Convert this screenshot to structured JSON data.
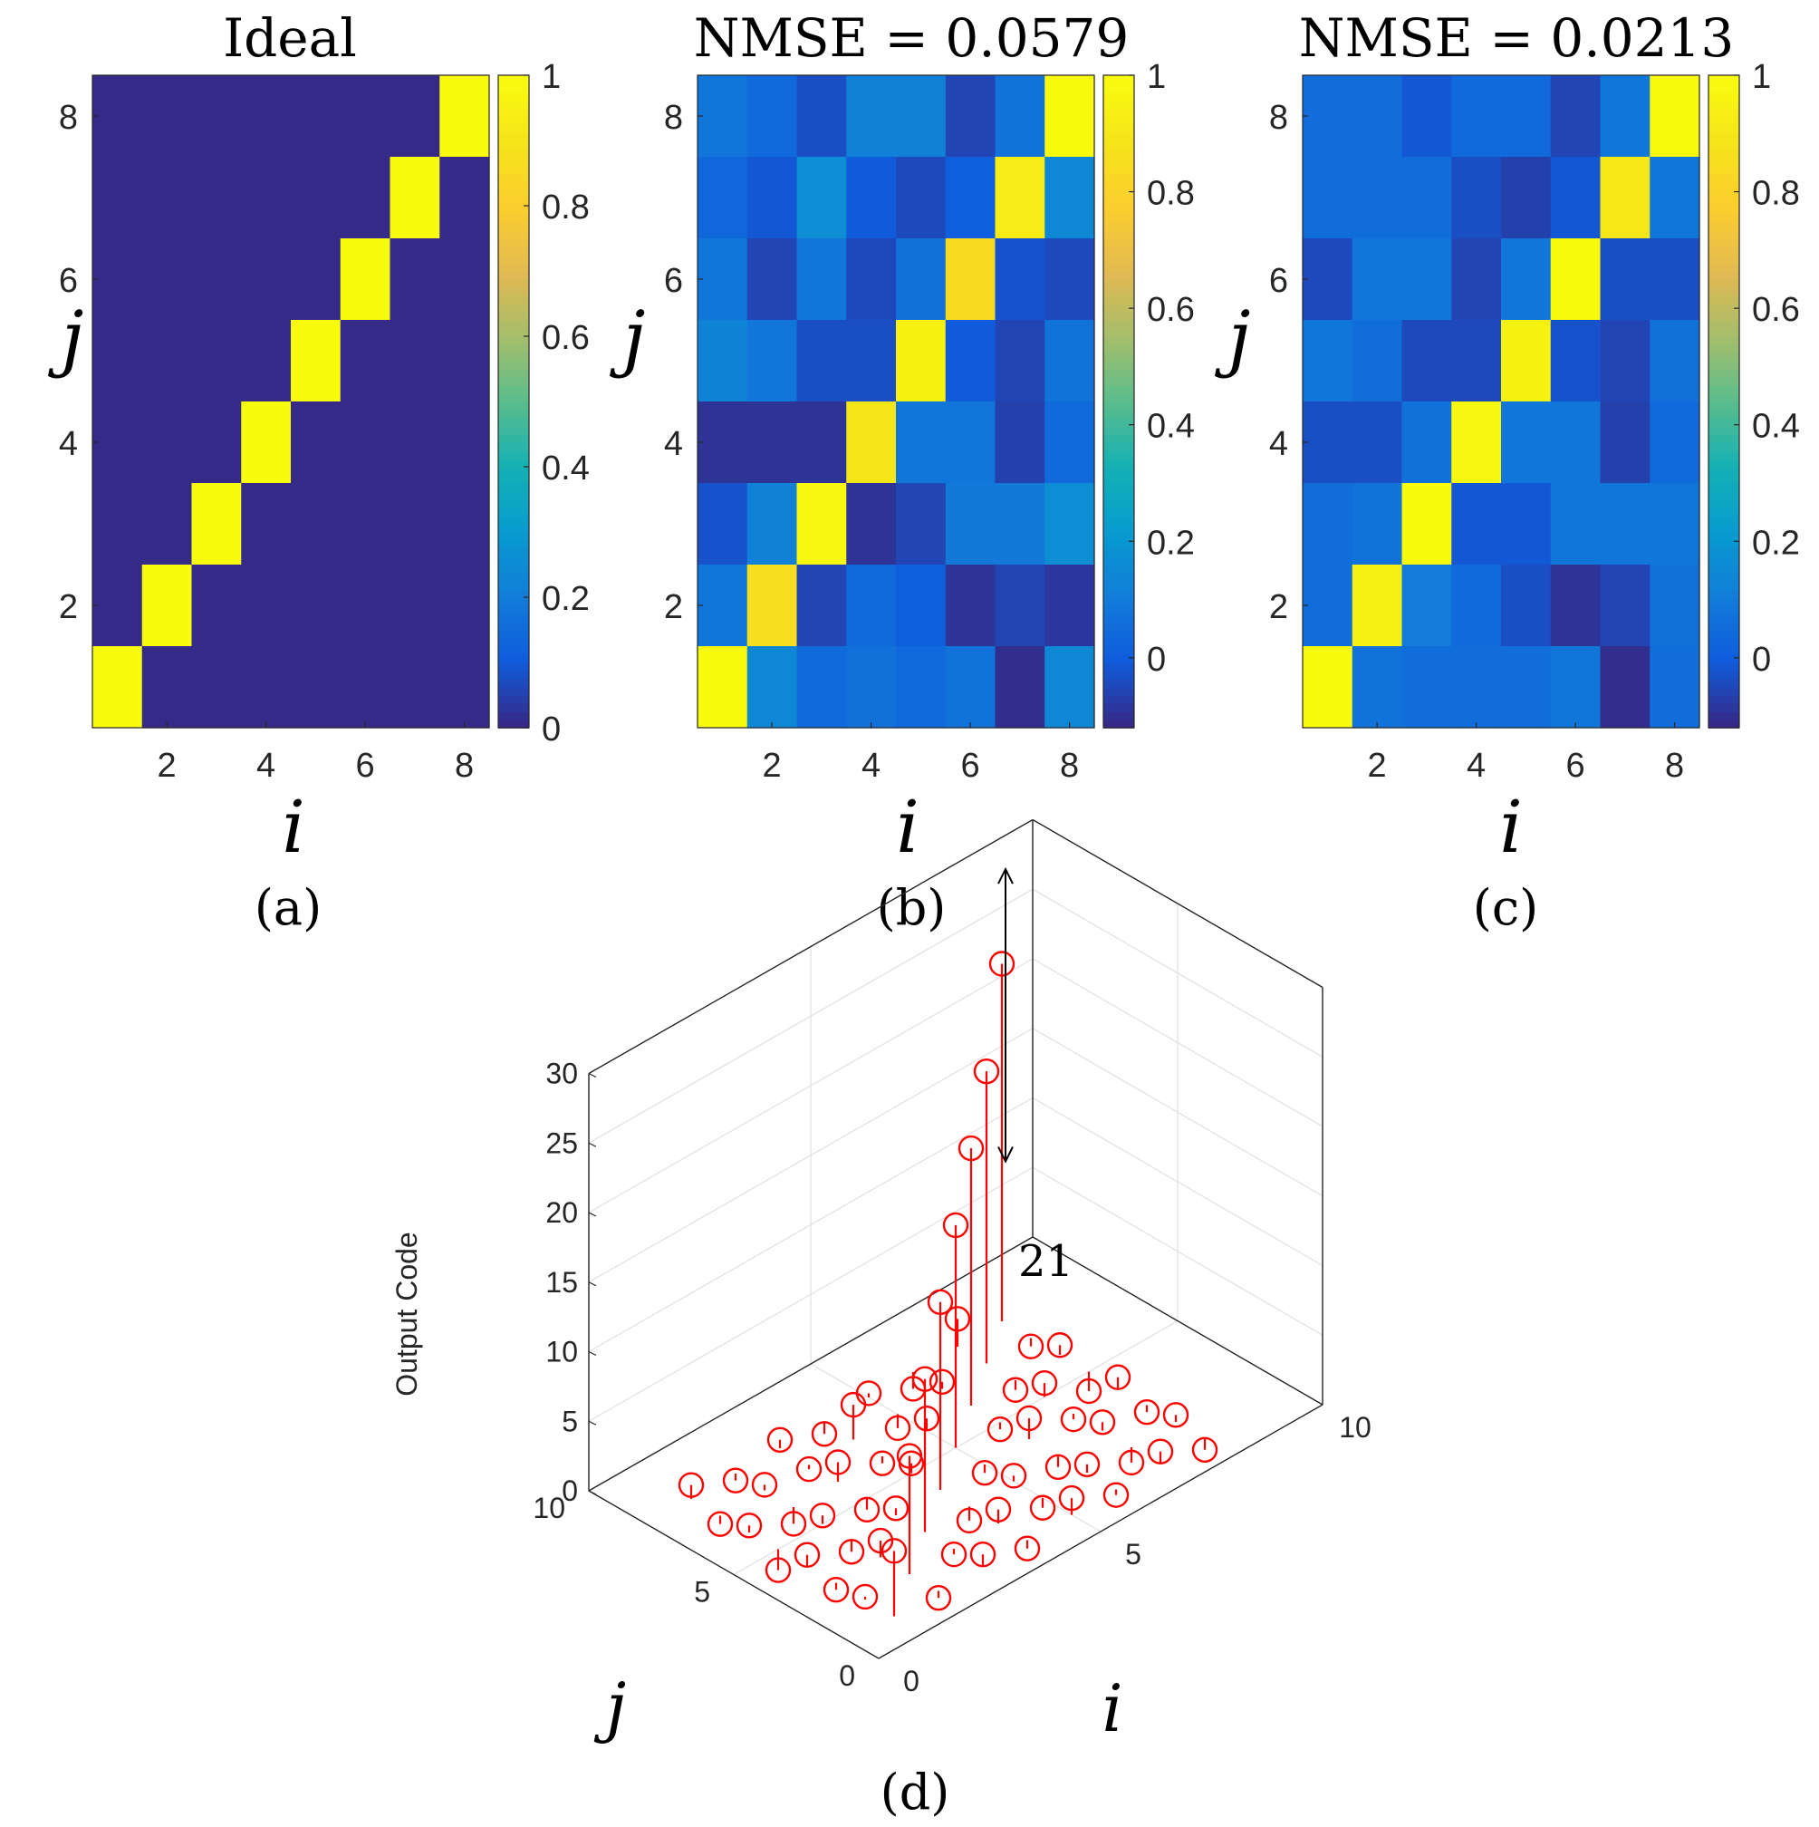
{
  "heatmaps": [
    {
      "panel": "(a)",
      "title": "Ideal",
      "xlabel": "i",
      "ylabel": "j",
      "xticks": [
        "2",
        "4",
        "6",
        "8"
      ],
      "yticks": [
        "2",
        "4",
        "6",
        "8"
      ],
      "cbar_ticks": [
        "0",
        "0.2",
        "0.4",
        "0.6",
        "0.8",
        "1"
      ]
    },
    {
      "panel": "(b)",
      "title": "NMSE = 0.0579",
      "xlabel": "i",
      "ylabel": "j",
      "xticks": [
        "2",
        "4",
        "6",
        "8"
      ],
      "yticks": [
        "2",
        "4",
        "6",
        "8"
      ],
      "cbar_ticks": [
        "0",
        "0.2",
        "0.4",
        "0.6",
        "0.8",
        "1"
      ]
    },
    {
      "panel": "(c)",
      "title": "NMSE = 0.0213",
      "xlabel": "i",
      "ylabel": "j",
      "xticks": [
        "2",
        "4",
        "6",
        "8"
      ],
      "yticks": [
        "2",
        "4",
        "6",
        "8"
      ],
      "cbar_ticks": [
        "0",
        "0.2",
        "0.4",
        "0.6",
        "0.8",
        "1"
      ]
    }
  ],
  "stem3d": {
    "panel": "(d)",
    "zlabel": "Output Code",
    "xlabel": "i",
    "ylabel": "j",
    "zticks": [
      "0",
      "5",
      "10",
      "15",
      "20",
      "25",
      "30"
    ],
    "iticks": [
      "0",
      "5",
      "10"
    ],
    "jticks": [
      "0",
      "5",
      "10"
    ],
    "annotation": "21"
  },
  "chart_data": [
    {
      "type": "heatmap",
      "title": "Ideal",
      "xlabel": "i",
      "ylabel": "j",
      "x": [
        1,
        2,
        3,
        4,
        5,
        6,
        7,
        8
      ],
      "y": [
        1,
        2,
        3,
        4,
        5,
        6,
        7,
        8
      ],
      "clim": [
        0,
        1
      ],
      "rows_j8_to_j1": [
        [
          0,
          0,
          0,
          0,
          0,
          0,
          0,
          1
        ],
        [
          0,
          0,
          0,
          0,
          0,
          0,
          1,
          0
        ],
        [
          0,
          0,
          0,
          0,
          0,
          1,
          0,
          0
        ],
        [
          0,
          0,
          0,
          0,
          1,
          0,
          0,
          0
        ],
        [
          0,
          0,
          0,
          1,
          0,
          0,
          0,
          0
        ],
        [
          0,
          0,
          1,
          0,
          0,
          0,
          0,
          0
        ],
        [
          0,
          1,
          0,
          0,
          0,
          0,
          0,
          0
        ],
        [
          1,
          0,
          0,
          0,
          0,
          0,
          0,
          0
        ]
      ]
    },
    {
      "type": "heatmap",
      "title": "NMSE = 0.0579",
      "xlabel": "i",
      "ylabel": "j",
      "x": [
        1,
        2,
        3,
        4,
        5,
        6,
        7,
        8
      ],
      "y": [
        1,
        2,
        3,
        4,
        5,
        6,
        7,
        8
      ],
      "clim": [
        -0.12,
        1
      ],
      "rows_j8_to_j1": [
        [
          0.08,
          0.04,
          -0.04,
          0.12,
          0.12,
          -0.06,
          0.07,
          1.0
        ],
        [
          0.03,
          -0.02,
          0.16,
          -0.01,
          -0.05,
          0.0,
          0.93,
          0.14
        ],
        [
          0.08,
          -0.06,
          0.08,
          -0.05,
          0.06,
          0.84,
          -0.03,
          -0.05
        ],
        [
          0.13,
          0.08,
          -0.04,
          -0.04,
          0.96,
          -0.01,
          -0.06,
          0.07
        ],
        [
          -0.1,
          -0.1,
          -0.1,
          0.9,
          0.08,
          0.08,
          -0.07,
          0.04
        ],
        [
          -0.03,
          0.12,
          0.98,
          -0.1,
          -0.06,
          0.09,
          0.09,
          0.16
        ],
        [
          0.08,
          0.86,
          -0.06,
          0.04,
          0.0,
          -0.1,
          -0.06,
          -0.09
        ],
        [
          1.0,
          0.14,
          0.04,
          0.06,
          0.04,
          0.07,
          -0.11,
          0.14
        ]
      ]
    },
    {
      "type": "heatmap",
      "title": "NMSE = 0.0213",
      "xlabel": "i",
      "ylabel": "j",
      "x": [
        1,
        2,
        3,
        4,
        5,
        6,
        7,
        8
      ],
      "y": [
        1,
        2,
        3,
        4,
        5,
        6,
        7,
        8
      ],
      "clim": [
        -0.12,
        1
      ],
      "rows_j8_to_j1": [
        [
          0.05,
          0.05,
          -0.02,
          0.04,
          0.04,
          -0.06,
          0.08,
          1.0
        ],
        [
          0.05,
          0.05,
          0.05,
          -0.04,
          -0.07,
          -0.02,
          0.91,
          0.08
        ],
        [
          -0.05,
          0.08,
          0.08,
          -0.06,
          0.08,
          1.0,
          -0.04,
          -0.04
        ],
        [
          0.08,
          0.05,
          -0.05,
          -0.05,
          0.96,
          -0.03,
          -0.06,
          0.06
        ],
        [
          -0.04,
          -0.04,
          0.06,
          0.98,
          0.08,
          0.08,
          -0.07,
          0.04
        ],
        [
          0.05,
          0.07,
          1.0,
          -0.02,
          -0.02,
          0.08,
          0.08,
          0.08
        ],
        [
          0.05,
          0.95,
          0.1,
          0.04,
          -0.04,
          -0.1,
          -0.06,
          0.06
        ],
        [
          1.0,
          0.07,
          0.05,
          0.05,
          0.05,
          0.08,
          -0.11,
          0.05
        ]
      ]
    },
    {
      "type": "scatter",
      "subtype": "stem3d",
      "xlabel": "i",
      "ylabel": "j",
      "zlabel": "Output Code",
      "xlim": [
        0,
        10
      ],
      "ylim": [
        0,
        10
      ],
      "zlim": [
        0,
        30
      ],
      "annotation": {
        "text": "21",
        "from_z": 4.7,
        "to_z": 25.7
      },
      "points": [
        [
          1,
          1,
          4.7
        ],
        [
          2,
          2,
          8.5
        ],
        [
          3,
          3,
          11
        ],
        [
          4,
          4,
          13.5
        ],
        [
          5,
          5,
          16
        ],
        [
          6,
          6,
          18.5
        ],
        [
          7,
          7,
          21
        ],
        [
          8,
          8,
          25.7
        ],
        [
          1,
          2,
          0.2
        ],
        [
          1,
          3,
          -0.5
        ],
        [
          1,
          4,
          0.8
        ],
        [
          1,
          5,
          -1.5
        ],
        [
          1,
          6,
          0.5
        ],
        [
          1,
          7,
          -0.6
        ],
        [
          1,
          8,
          1.0
        ],
        [
          2,
          1,
          -0.5
        ],
        [
          2,
          3,
          1.2
        ],
        [
          2,
          4,
          -0.8
        ],
        [
          2,
          5,
          0.6
        ],
        [
          2,
          6,
          -1.2
        ],
        [
          2,
          7,
          0.4
        ],
        [
          2,
          8,
          -0.5
        ],
        [
          3,
          1,
          0.8
        ],
        [
          3,
          2,
          -0.4
        ],
        [
          3,
          4,
          0.5
        ],
        [
          3,
          5,
          -0.8
        ],
        [
          3,
          6,
          1.4
        ],
        [
          3,
          7,
          -0.3
        ],
        [
          3,
          8,
          0.6
        ],
        [
          4,
          1,
          -0.6
        ],
        [
          4,
          2,
          1.0
        ],
        [
          4,
          3,
          -1.0
        ],
        [
          4,
          5,
          0.7
        ],
        [
          4,
          6,
          -0.5
        ],
        [
          4,
          7,
          2.5
        ],
        [
          4,
          8,
          -0.8
        ],
        [
          5,
          1,
          1.2
        ],
        [
          5,
          2,
          -0.7
        ],
        [
          5,
          3,
          0.4
        ],
        [
          5,
          4,
          -0.6
        ],
        [
          5,
          6,
          0.9
        ],
        [
          5,
          7,
          -1.0
        ],
        [
          5,
          8,
          0.3
        ],
        [
          6,
          1,
          -0.4
        ],
        [
          6,
          2,
          0.6
        ],
        [
          6,
          3,
          -0.8
        ],
        [
          6,
          4,
          1.5
        ],
        [
          6,
          5,
          -0.5
        ],
        [
          6,
          7,
          0.5
        ],
        [
          6,
          8,
          -1.2
        ],
        [
          7,
          1,
          0.9
        ],
        [
          7,
          2,
          -1.1
        ],
        [
          7,
          3,
          0.6
        ],
        [
          7,
          4,
          -0.4
        ],
        [
          7,
          5,
          1.0
        ],
        [
          7,
          6,
          -0.7
        ],
        [
          7,
          8,
          2.0
        ],
        [
          8,
          1,
          -0.8
        ],
        [
          8,
          2,
          0.5
        ],
        [
          8,
          3,
          -0.5
        ],
        [
          8,
          4,
          0.8
        ],
        [
          8,
          5,
          -1.4
        ],
        [
          8,
          6,
          0.7
        ],
        [
          8,
          7,
          -0.6
        ]
      ]
    }
  ]
}
